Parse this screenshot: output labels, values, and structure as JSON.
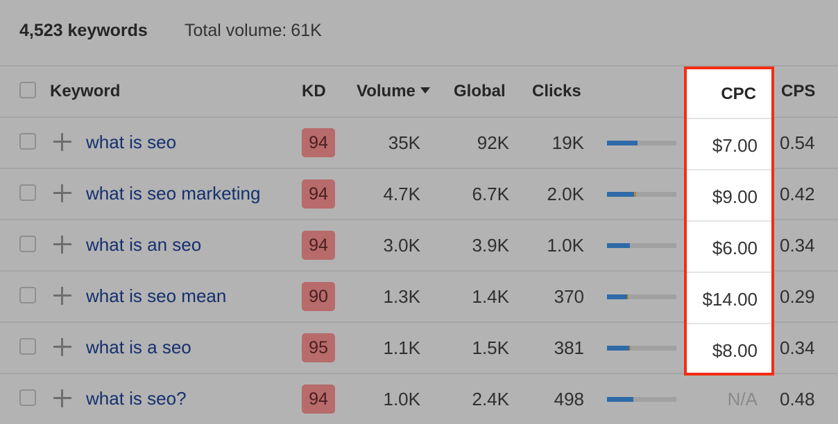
{
  "summary": {
    "keyword_count": "4,523 keywords",
    "total_volume_label": "Total volume:",
    "total_volume_value": "61K"
  },
  "columns": {
    "keyword": "Keyword",
    "kd": "KD",
    "volume": "Volume",
    "global": "Global",
    "clicks": "Clicks",
    "cpc": "CPC",
    "cps": "CPS"
  },
  "sort": {
    "column": "volume",
    "direction": "descending",
    "icon": "caret-down-icon"
  },
  "highlight": {
    "column": "cpc",
    "color": "#f22d12"
  },
  "rows": [
    {
      "keyword": "what is seo",
      "kd": "94",
      "volume": "35K",
      "global": "92K",
      "clicks": "19K",
      "clicks_paid_share": 0.0,
      "clicks_organic_share": 0.44,
      "cpc": "$7.00",
      "cps": "0.54"
    },
    {
      "keyword": "what is seo marketing",
      "kd": "94",
      "volume": "4.7K",
      "global": "6.7K",
      "clicks": "2.0K",
      "clicks_organic_share": 0.39,
      "clicks_paid_share": 0.03,
      "cpc": "$9.00",
      "cps": "0.42"
    },
    {
      "keyword": "what is an seo",
      "kd": "94",
      "volume": "3.0K",
      "global": "3.9K",
      "clicks": "1.0K",
      "clicks_organic_share": 0.33,
      "clicks_paid_share": 0.0,
      "cpc": "$6.00",
      "cps": "0.34"
    },
    {
      "keyword": "what is seo mean",
      "kd": "90",
      "volume": "1.3K",
      "global": "1.4K",
      "clicks": "370",
      "clicks_organic_share": 0.29,
      "clicks_paid_share": 0.02,
      "cpc": "$14.00",
      "cps": "0.29"
    },
    {
      "keyword": "what is a seo",
      "kd": "95",
      "volume": "1.1K",
      "global": "1.5K",
      "clicks": "381",
      "clicks_organic_share": 0.32,
      "clicks_paid_share": 0.02,
      "cpc": "$8.00",
      "cps": "0.34"
    },
    {
      "keyword": "what is seo?",
      "kd": "94",
      "volume": "1.0K",
      "global": "2.4K",
      "clicks": "498",
      "clicks_organic_share": 0.38,
      "clicks_paid_share": 0.0,
      "cpc": "N/A",
      "cps": "0.48"
    }
  ],
  "colors": {
    "background": "#b3b3b3",
    "keyword_link": "#15306e",
    "kd_badge": "#b76b6b",
    "bar_organic": "#2e6aa8",
    "bar_paid": "#b08a2c"
  }
}
